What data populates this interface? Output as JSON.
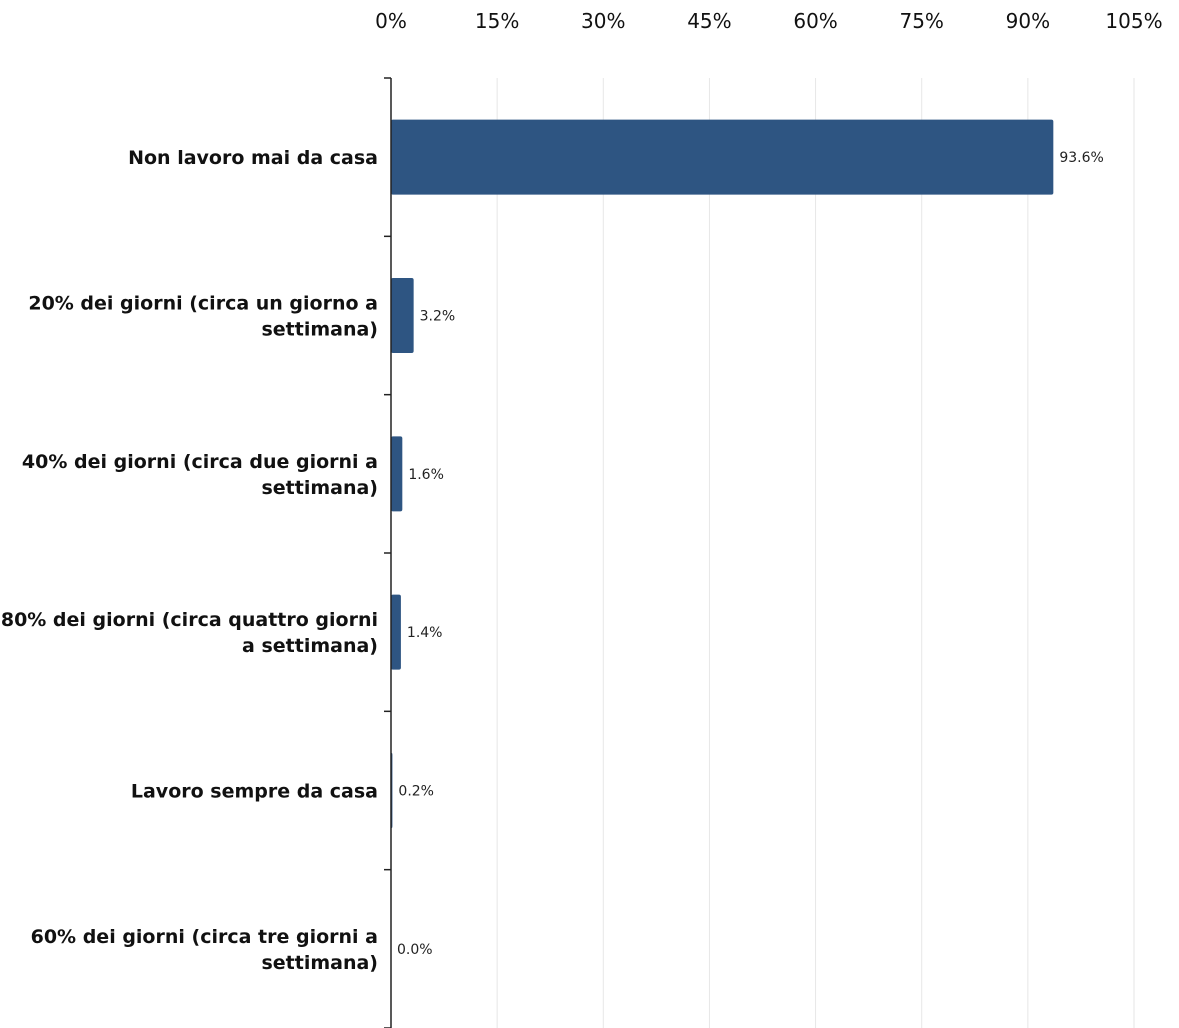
{
  "chart_data": {
    "type": "bar",
    "orientation": "horizontal",
    "categories": [
      [
        "Non lavoro mai da casa"
      ],
      [
        "20% dei giorni (circa un giorno a",
        "settimana)"
      ],
      [
        "40% dei giorni (circa due giorni a",
        "settimana)"
      ],
      [
        "80% dei giorni (circa quattro giorni",
        "a settimana)"
      ],
      [
        "Lavoro sempre da casa"
      ],
      [
        "60% dei giorni (circa tre giorni a",
        "settimana)"
      ]
    ],
    "values": [
      93.6,
      3.2,
      1.6,
      1.4,
      0.2,
      0.0
    ],
    "data_labels": [
      "93.6%",
      "3.2%",
      "1.6%",
      "1.4%",
      "0.2%",
      "0.0%"
    ],
    "x_ticks": [
      "0%",
      "15%",
      "30%",
      "45%",
      "60%",
      "75%",
      "90%",
      "105%"
    ],
    "xlim": [
      0,
      105
    ],
    "x_axis_position": "top",
    "grid": true,
    "bar_color": "#2e5582",
    "title": "",
    "xlabel": "",
    "ylabel": ""
  }
}
